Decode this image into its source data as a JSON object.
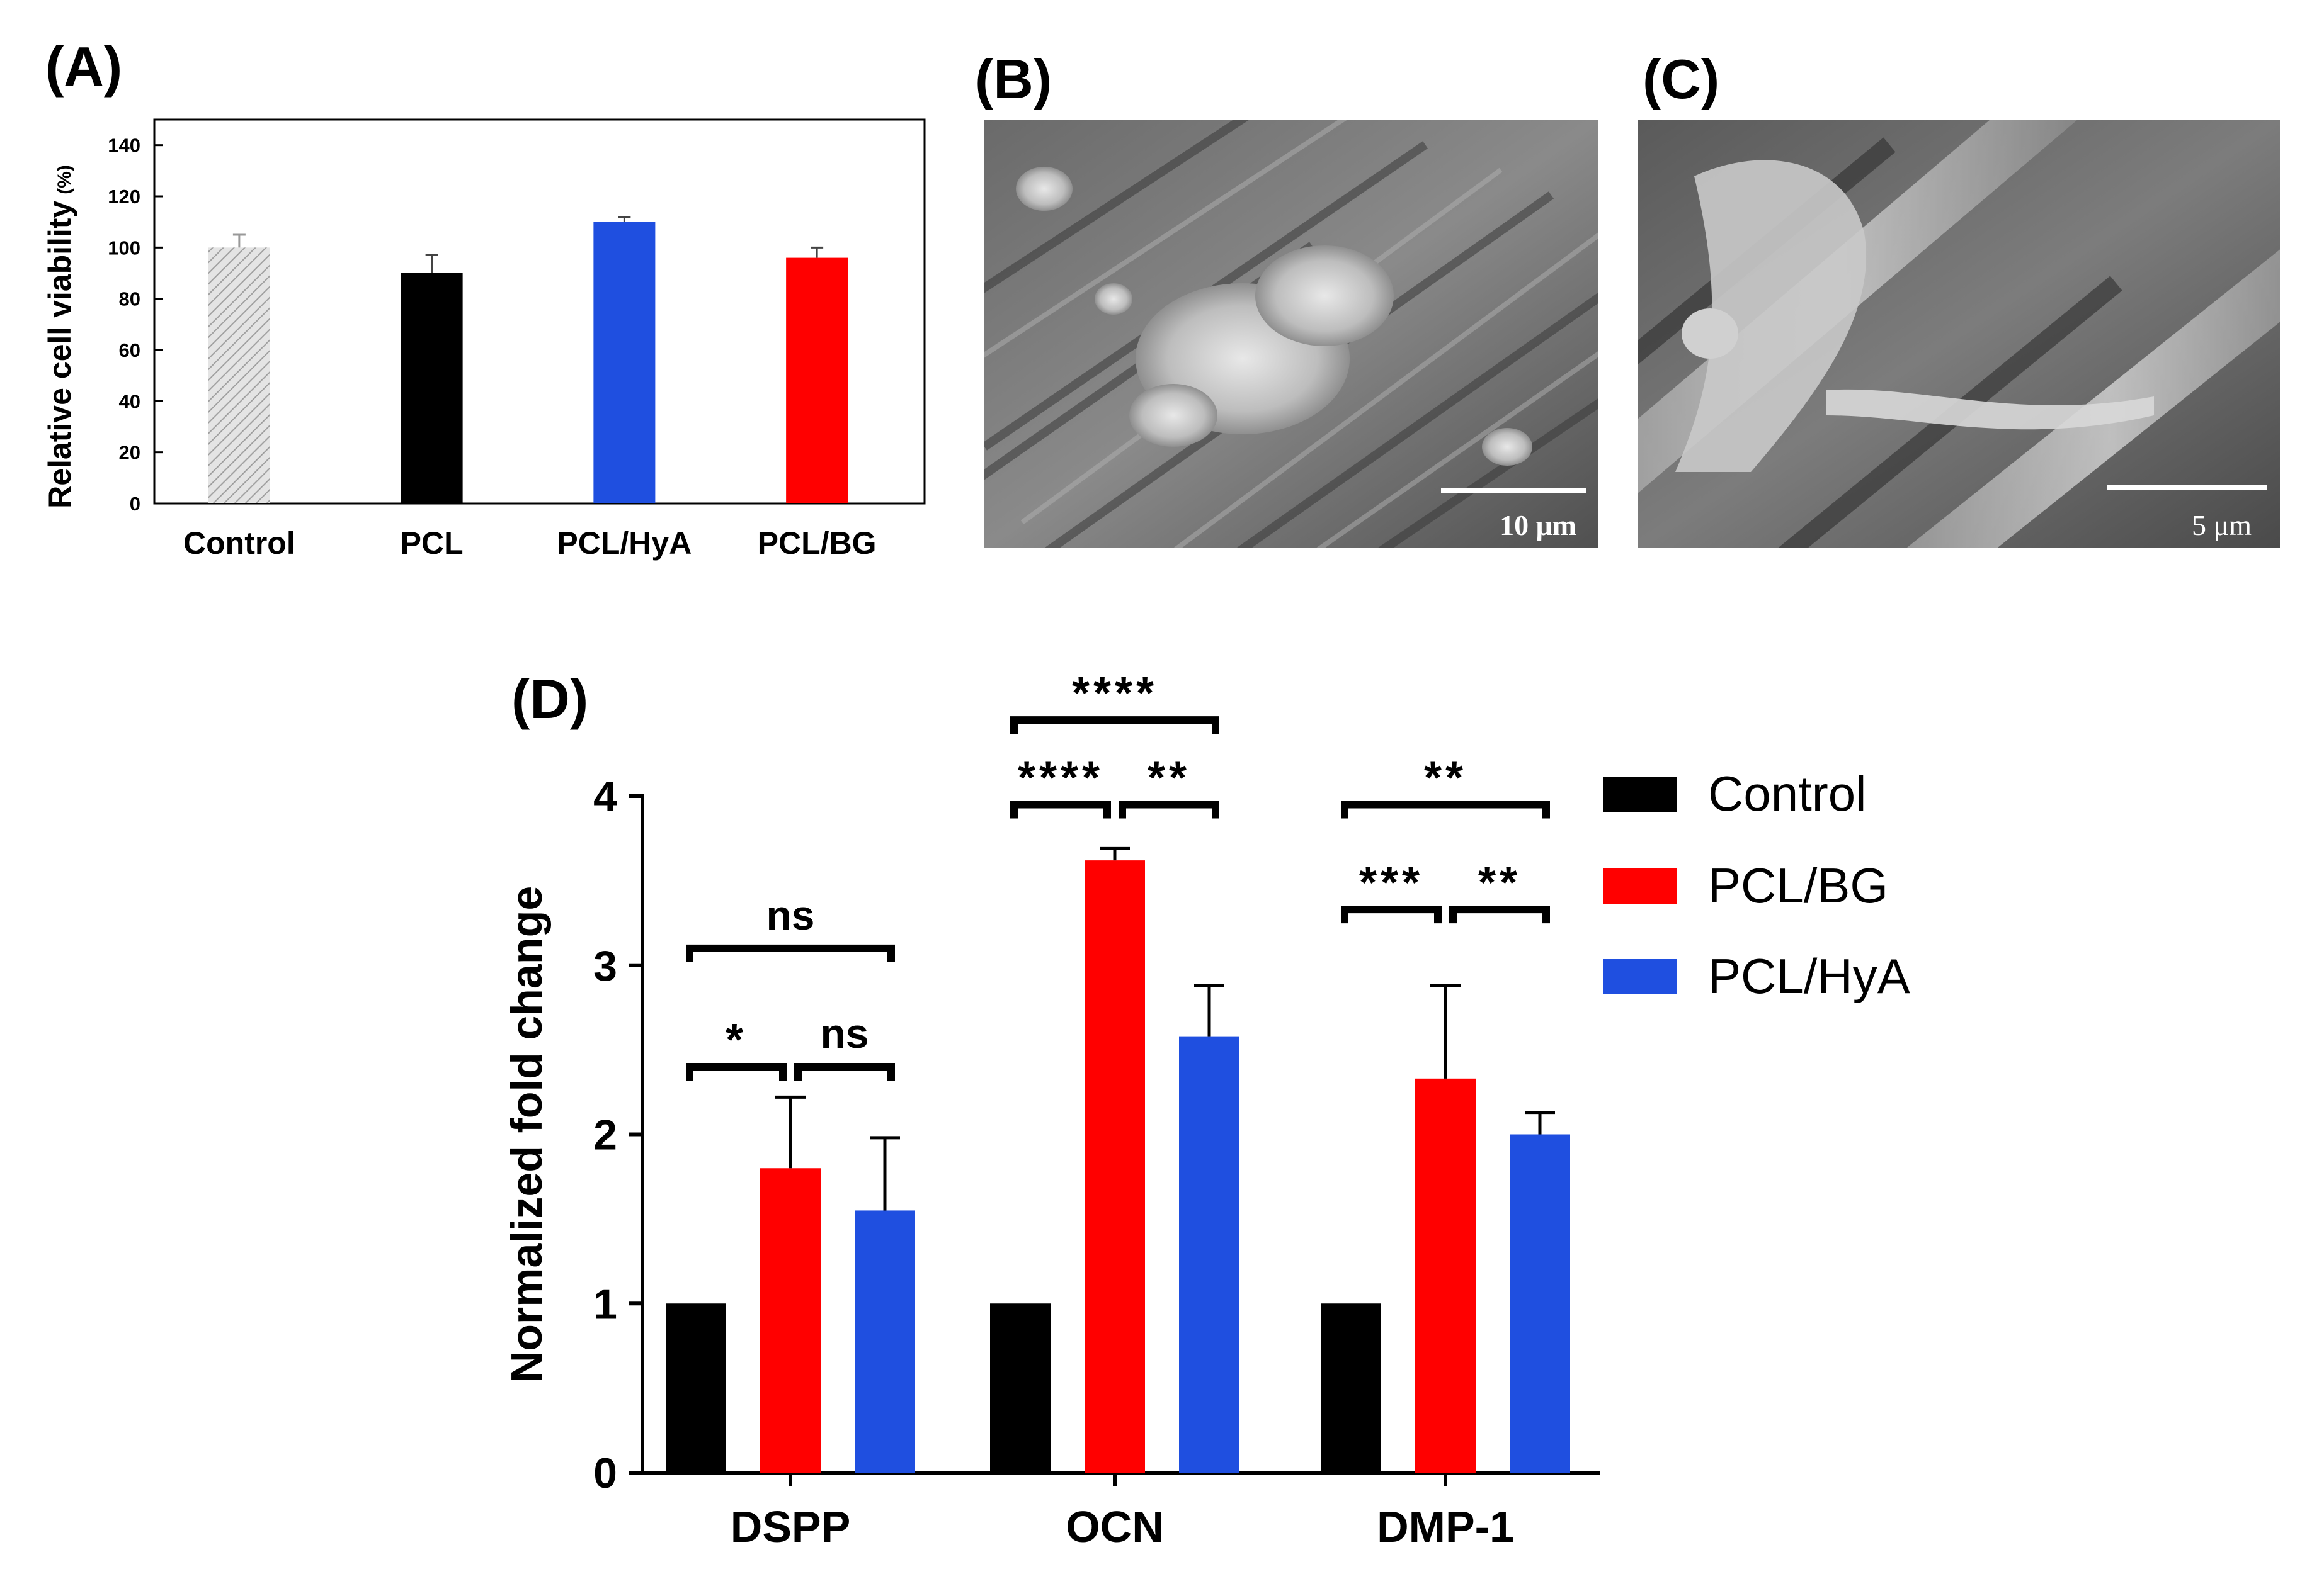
{
  "panels": {
    "a_label": "(A)",
    "b_label": "(B)",
    "c_label": "(C)",
    "d_label": "(D)"
  },
  "sem_b": {
    "scale_text": "10 μm"
  },
  "sem_c": {
    "scale_text": "5 μm"
  },
  "chart_data": [
    {
      "panel": "(A)",
      "type": "bar",
      "categories": [
        "Control",
        "PCL",
        "PCL/HyA",
        "PCL/BG"
      ],
      "values": [
        100,
        90,
        110,
        96
      ],
      "errors": [
        5,
        7,
        2,
        4
      ],
      "colors": [
        "#cfcfcf",
        "#000000",
        "#1f4fe0",
        "#ff0000"
      ],
      "ylabel": "Relative cell viability",
      "ylabel_unit": "(%)",
      "ylim": [
        0,
        150
      ],
      "yticks": [
        0,
        20,
        40,
        60,
        80,
        100,
        120,
        140
      ],
      "grid": false
    },
    {
      "panel": "(D)",
      "type": "bar",
      "categories": [
        "DSPP",
        "OCN",
        "DMP-1"
      ],
      "series": [
        {
          "name": "Control",
          "color": "#000000",
          "values": [
            1.0,
            1.0,
            1.0
          ],
          "errors": [
            0,
            0,
            0
          ]
        },
        {
          "name": "PCL/BG",
          "color": "#ff0000",
          "values": [
            1.8,
            3.62,
            2.33
          ],
          "errors": [
            0.42,
            0.07,
            0.55
          ]
        },
        {
          "name": "PCL/HyA",
          "color": "#1f4fe0",
          "values": [
            1.55,
            2.58,
            2.0
          ],
          "errors": [
            0.43,
            0.3,
            0.13
          ]
        }
      ],
      "ylabel": "Normalized fold change",
      "ylim": [
        0,
        4
      ],
      "yticks": [
        0,
        1,
        2,
        3,
        4
      ],
      "legend_position": "right",
      "significance": [
        {
          "category": "DSPP",
          "from": "Control",
          "to": "PCL/BG",
          "label": "*",
          "level": 1
        },
        {
          "category": "DSPP",
          "from": "PCL/BG",
          "to": "PCL/HyA",
          "label": "ns",
          "level": 1
        },
        {
          "category": "DSPP",
          "from": "Control",
          "to": "PCL/HyA",
          "label": "ns",
          "level": 2
        },
        {
          "category": "OCN",
          "from": "Control",
          "to": "PCL/BG",
          "label": "****",
          "level": 1
        },
        {
          "category": "OCN",
          "from": "PCL/BG",
          "to": "PCL/HyA",
          "label": "**",
          "level": 1
        },
        {
          "category": "OCN",
          "from": "Control",
          "to": "PCL/HyA",
          "label": "****",
          "level": 2
        },
        {
          "category": "DMP-1",
          "from": "Control",
          "to": "PCL/BG",
          "label": "***",
          "level": 1
        },
        {
          "category": "DMP-1",
          "from": "PCL/BG",
          "to": "PCL/HyA",
          "label": "**",
          "level": 1
        },
        {
          "category": "DMP-1",
          "from": "Control",
          "to": "PCL/HyA",
          "label": "**",
          "level": 2
        }
      ],
      "grid": false
    }
  ]
}
